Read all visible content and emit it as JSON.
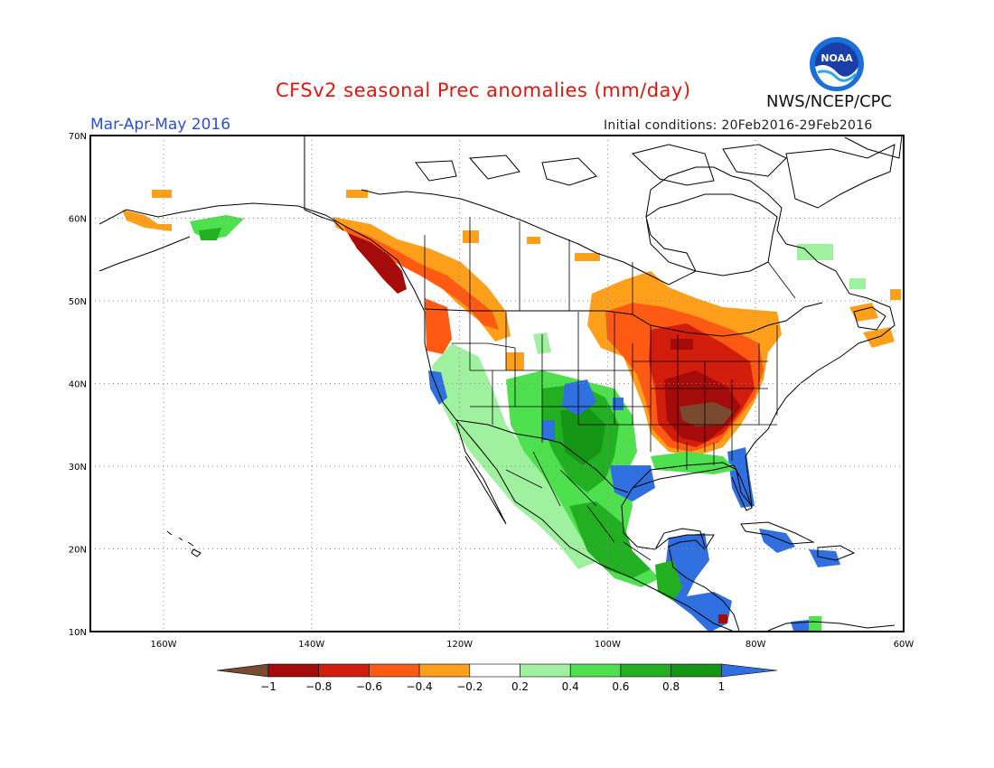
{
  "header": {
    "title": "CFSv2 seasonal Prec anomalies (mm/day)",
    "season": "Mar-Apr-May 2016",
    "initial_conditions": "Initial conditions: 20Feb2016-29Feb2016",
    "agency": "NWS/NCEP/CPC",
    "logo_text": "NOAA"
  },
  "map": {
    "lat_labels": [
      "70N",
      "60N",
      "50N",
      "40N",
      "30N",
      "20N",
      "10N"
    ],
    "lon_labels": [
      "160W",
      "140W",
      "120W",
      "100W",
      "80W",
      "60W"
    ],
    "grid": true
  },
  "colorbar": {
    "labels": [
      "−1",
      "−0.8",
      "−0.6",
      "−0.4",
      "−0.2",
      "0.2",
      "0.4",
      "0.6",
      "0.8",
      "1"
    ],
    "colors": [
      "#7a4a30",
      "#a50b0b",
      "#d21c0c",
      "#ff5a14",
      "#ff9f1a",
      "#ffffff",
      "#9ff09f",
      "#4fe04f",
      "#22b022",
      "#149614",
      "#2f6fe0"
    ]
  },
  "anomaly_colors": {
    "neg_extreme": "#7a4a30",
    "neg_strong": "#a50b0b",
    "neg_mod": "#d21c0c",
    "neg_light": "#ff5a14",
    "neg_weak": "#ff9f1a",
    "pos_weak": "#9ff09f",
    "pos_light": "#4fe04f",
    "pos_mod": "#22b022",
    "pos_strong": "#149614",
    "pos_extreme": "#2f6fe0"
  }
}
